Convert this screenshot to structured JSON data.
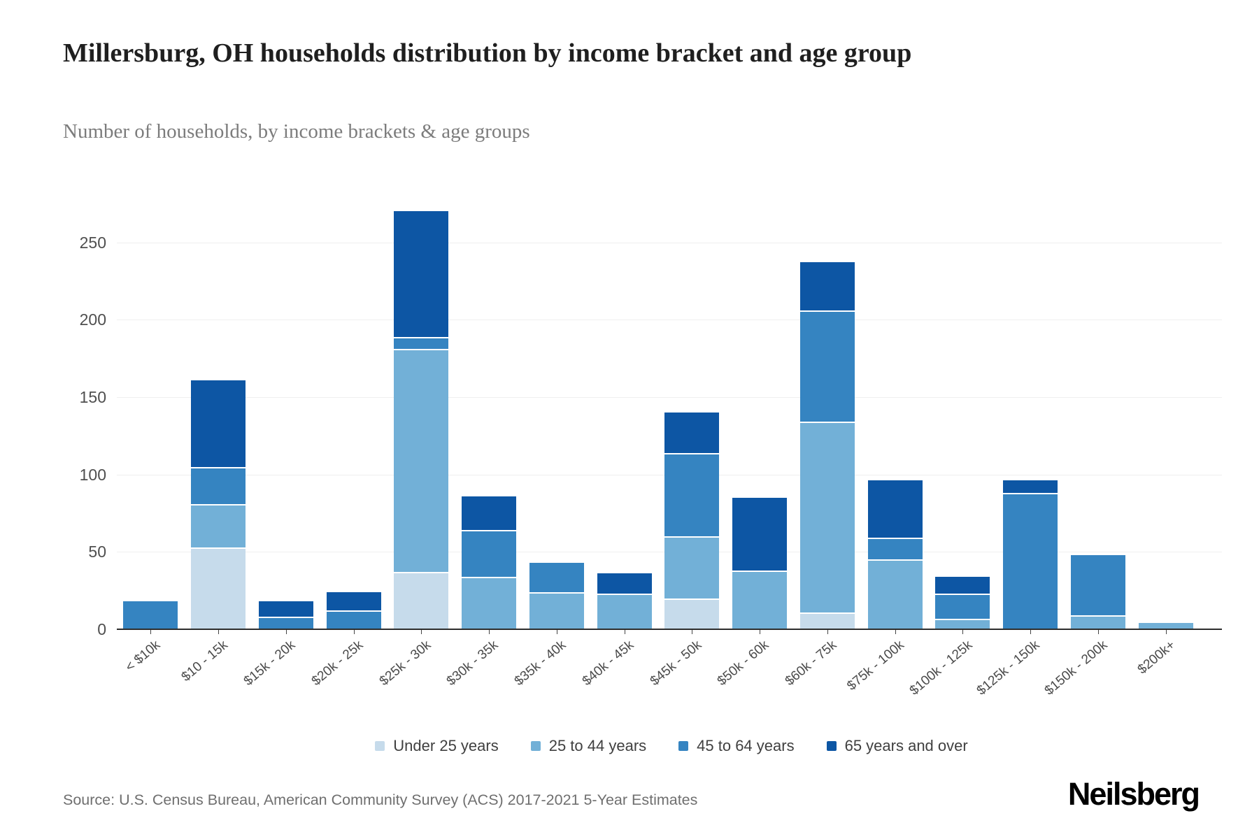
{
  "header": {
    "title": "Millersburg, OH households distribution by income bracket and age group",
    "subtitle": "Number of households, by income brackets & age groups"
  },
  "footer": {
    "source": "Source: U.S. Census Bureau, American Community Survey (ACS) 2017-2021 5-Year Estimates",
    "brand": "Neilsberg"
  },
  "colors": {
    "background": "#ffffff",
    "gridline": "#efefef",
    "axis": "#2d2d2d",
    "under_25": "#c6dbeb",
    "age_25_44": "#72b0d7",
    "age_45_64": "#3584c1",
    "age_65_plus": "#0d56a4"
  },
  "chart_data": {
    "type": "bar",
    "stacked": true,
    "title": "Millersburg, OH households distribution by income bracket and age group",
    "subtitle": "Number of households, by income brackets & age groups",
    "xlabel": "",
    "ylabel": "",
    "grid": true,
    "legend_position": "bottom",
    "yticks": [
      0,
      50,
      100,
      150,
      200,
      250
    ],
    "ylim": [
      0,
      280
    ],
    "categories": [
      "< $10k",
      "$10 - 15k",
      "$15k - 20k",
      "$20k - 25k",
      "$25k - 30k",
      "$30k - 35k",
      "$35k - 40k",
      "$40k - 45k",
      "$45k - 50k",
      "$50k - 60k",
      "$60k - 75k",
      "$75k - 100k",
      "$100k - 125k",
      "$125k - 150k",
      "$150k - 200k",
      "$200k+"
    ],
    "series": [
      {
        "name": "Under 25 years",
        "color": "#c6dbeb",
        "values": [
          0,
          53,
          0,
          0,
          37,
          0,
          0,
          0,
          20,
          0,
          11,
          0,
          0,
          0,
          0,
          0
        ]
      },
      {
        "name": "25 to 44 years",
        "color": "#72b0d7",
        "values": [
          0,
          28,
          0,
          0,
          144,
          34,
          24,
          23,
          40,
          38,
          123,
          45,
          7,
          0,
          9,
          4
        ]
      },
      {
        "name": "45 to 64 years",
        "color": "#3584c1",
        "values": [
          18,
          24,
          8,
          12,
          8,
          30,
          19,
          0,
          54,
          0,
          72,
          14,
          16,
          88,
          39,
          0
        ]
      },
      {
        "name": "65 years and over",
        "color": "#0d56a4",
        "values": [
          0,
          56,
          10,
          12,
          81,
          22,
          0,
          13,
          26,
          47,
          31,
          37,
          11,
          8,
          0,
          0
        ]
      }
    ],
    "totals": [
      18,
      161,
      18,
      24,
      270,
      86,
      43,
      36,
      140,
      85,
      237,
      96,
      34,
      96,
      48,
      4
    ]
  }
}
